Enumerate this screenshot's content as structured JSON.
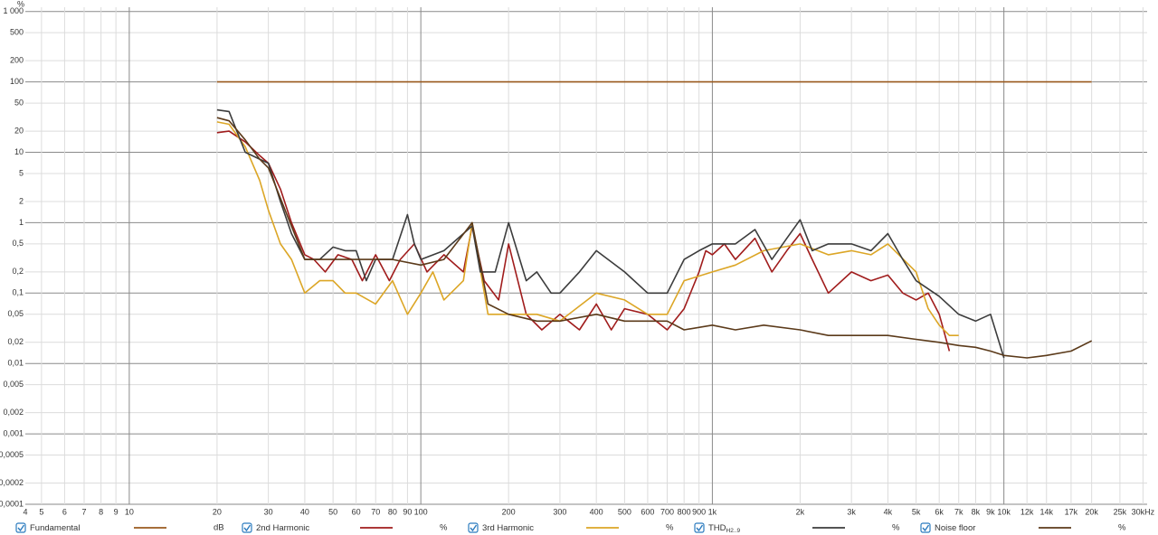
{
  "chart_data": {
    "type": "line",
    "y_label": "%",
    "log_x": true,
    "log_y": true,
    "grid": true,
    "xlim": [
      4.4,
      31000
    ],
    "ylim": [
      0.0001,
      1150
    ],
    "xticks": [
      4,
      5,
      6,
      7,
      8,
      9,
      10,
      20,
      30,
      40,
      50,
      60,
      70,
      80,
      90,
      100,
      200,
      300,
      400,
      500,
      600,
      700,
      800,
      900,
      {
        "value": 1000,
        "label": "1k"
      },
      {
        "value": 2000,
        "label": "2k"
      },
      {
        "value": 3000,
        "label": "3k"
      },
      {
        "value": 4000,
        "label": "4k"
      },
      {
        "value": 5000,
        "label": "5k"
      },
      {
        "value": 6000,
        "label": "6k"
      },
      {
        "value": 7000,
        "label": "7k"
      },
      {
        "value": 8000,
        "label": "8k"
      },
      {
        "value": 9000,
        "label": "9k"
      },
      {
        "value": 10000,
        "label": "10k"
      },
      {
        "value": 12000,
        "label": "12k"
      },
      {
        "value": 14000,
        "label": "14k"
      },
      {
        "value": 17000,
        "label": "17k"
      },
      {
        "value": 20000,
        "label": "20k"
      },
      {
        "value": 25000,
        "label": "25k"
      },
      {
        "value": 30000,
        "label": "30kHz"
      }
    ],
    "yticks": [
      {
        "value": 1000,
        "label": "1 000"
      },
      500,
      200,
      100,
      50,
      20,
      10,
      5,
      2,
      1,
      {
        "value": 0.5,
        "label": "0,5"
      },
      {
        "value": 0.2,
        "label": "0,2"
      },
      {
        "value": 0.1,
        "label": "0,1"
      },
      {
        "value": 0.05,
        "label": "0,05"
      },
      {
        "value": 0.02,
        "label": "0,02"
      },
      {
        "value": 0.01,
        "label": "0,01"
      },
      {
        "value": 0.005,
        "label": "0,005"
      },
      {
        "value": 0.002,
        "label": "0,002"
      },
      {
        "value": 0.001,
        "label": "0,001"
      },
      {
        "value": 0.0005,
        "label": "0,0005"
      },
      {
        "value": 0.0002,
        "label": "0,0002"
      },
      {
        "value": 0.0001,
        "label": "0,0001"
      }
    ],
    "series": [
      {
        "name": "Fundamental",
        "unit": "dB",
        "color": "#9a5a1e",
        "x": [
          20,
          20000
        ],
        "values": [
          100,
          100
        ]
      },
      {
        "name": "2nd Harmonic",
        "unit": "%",
        "color": "#a01c1c",
        "x": [
          20,
          22,
          25,
          28,
          30,
          33,
          36,
          40,
          43,
          47,
          52,
          58,
          63,
          70,
          78,
          85,
          95,
          105,
          120,
          140,
          150,
          165,
          185,
          200,
          230,
          260,
          300,
          350,
          400,
          450,
          500,
          600,
          700,
          800,
          900,
          950,
          1000,
          1100,
          1200,
          1400,
          1600,
          1800,
          2000,
          2200,
          2500,
          3000,
          3500,
          4000,
          4500,
          5000,
          5500,
          6000,
          6500
        ],
        "values": [
          19,
          20,
          14,
          9,
          7,
          3,
          1,
          0.35,
          0.3,
          0.2,
          0.35,
          0.3,
          0.15,
          0.35,
          0.15,
          0.3,
          0.5,
          0.2,
          0.35,
          0.2,
          0.9,
          0.15,
          0.08,
          0.5,
          0.05,
          0.03,
          0.05,
          0.03,
          0.07,
          0.03,
          0.06,
          0.05,
          0.03,
          0.06,
          0.2,
          0.4,
          0.35,
          0.5,
          0.3,
          0.6,
          0.2,
          0.4,
          0.7,
          0.3,
          0.1,
          0.2,
          0.15,
          0.18,
          0.1,
          0.08,
          0.1,
          0.05,
          0.015
        ]
      },
      {
        "name": "3rd Harmonic",
        "unit": "%",
        "color": "#dca626",
        "x": [
          20,
          22,
          25,
          28,
          30,
          33,
          36,
          40,
          45,
          50,
          55,
          60,
          70,
          80,
          90,
          100,
          110,
          120,
          140,
          150,
          170,
          200,
          250,
          300,
          400,
          500,
          600,
          700,
          800,
          1000,
          1200,
          1500,
          2000,
          2500,
          3000,
          3500,
          4000,
          5000,
          5500,
          6000,
          6500,
          7000
        ],
        "values": [
          27,
          25,
          12,
          4,
          1.5,
          0.5,
          0.3,
          0.1,
          0.15,
          0.15,
          0.1,
          0.1,
          0.07,
          0.15,
          0.05,
          0.1,
          0.2,
          0.08,
          0.15,
          1,
          0.05,
          0.05,
          0.05,
          0.04,
          0.1,
          0.08,
          0.05,
          0.05,
          0.15,
          0.2,
          0.25,
          0.4,
          0.5,
          0.35,
          0.4,
          0.35,
          0.5,
          0.2,
          0.06,
          0.035,
          0.025,
          0.025
        ]
      },
      {
        "name": "THD",
        "name_sub": "H2..9",
        "unit": "%",
        "color": "#3c3c3c",
        "x": [
          20,
          22,
          25,
          28,
          30,
          33,
          36,
          40,
          45,
          50,
          55,
          60,
          65,
          70,
          80,
          90,
          95,
          100,
          120,
          150,
          160,
          180,
          200,
          230,
          250,
          280,
          300,
          350,
          400,
          500,
          600,
          700,
          800,
          900,
          1000,
          1200,
          1400,
          1600,
          1800,
          2000,
          2200,
          2500,
          3000,
          3500,
          4000,
          4500,
          5000,
          6000,
          7000,
          8000,
          9000,
          10000
        ],
        "values": [
          40,
          38,
          10,
          8,
          7,
          2,
          0.7,
          0.3,
          0.3,
          0.45,
          0.4,
          0.4,
          0.15,
          0.3,
          0.3,
          1.3,
          0.5,
          0.3,
          0.4,
          0.9,
          0.2,
          0.2,
          1,
          0.15,
          0.2,
          0.1,
          0.1,
          0.2,
          0.4,
          0.2,
          0.1,
          0.1,
          0.3,
          0.4,
          0.5,
          0.5,
          0.8,
          0.3,
          0.6,
          1.1,
          0.4,
          0.5,
          0.5,
          0.4,
          0.7,
          0.3,
          0.15,
          0.09,
          0.05,
          0.04,
          0.05,
          0.012
        ]
      },
      {
        "name": "Noise floor",
        "unit": "%",
        "color": "#5b3a1a",
        "x": [
          20,
          22,
          25,
          28,
          30,
          35,
          40,
          50,
          60,
          70,
          80,
          100,
          120,
          150,
          170,
          200,
          250,
          300,
          400,
          500,
          600,
          700,
          800,
          1000,
          1200,
          1500,
          2000,
          2500,
          3000,
          4000,
          5000,
          6000,
          7000,
          8000,
          9000,
          10000,
          12000,
          14000,
          17000,
          20000
        ],
        "values": [
          31,
          28,
          15,
          8,
          6,
          1.2,
          0.3,
          0.3,
          0.3,
          0.3,
          0.3,
          0.25,
          0.3,
          1,
          0.07,
          0.05,
          0.04,
          0.04,
          0.05,
          0.04,
          0.04,
          0.04,
          0.03,
          0.035,
          0.03,
          0.035,
          0.03,
          0.025,
          0.025,
          0.025,
          0.022,
          0.02,
          0.018,
          0.017,
          0.015,
          0.013,
          0.012,
          0.013,
          0.015,
          0.021
        ]
      }
    ]
  }
}
